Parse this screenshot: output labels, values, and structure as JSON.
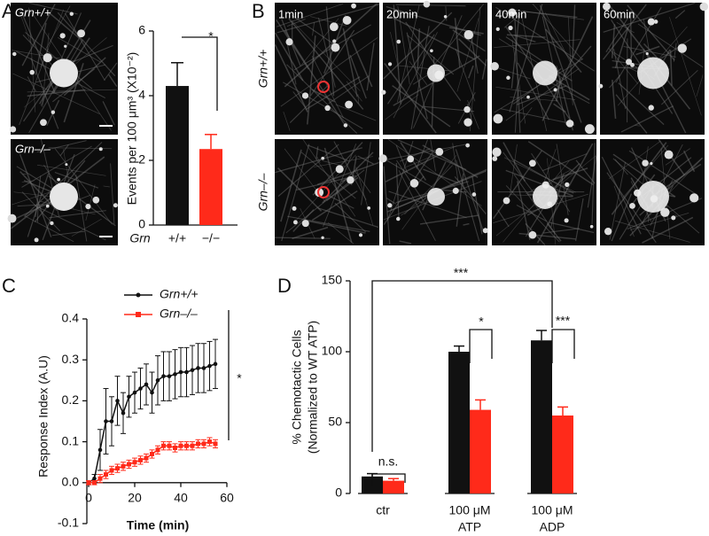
{
  "panels": [
    "A",
    "B",
    "C",
    "D"
  ],
  "panel_a_images": {
    "labels": [
      "Grn+/+",
      "Grn–/–"
    ]
  },
  "panel_b_images": {
    "time_labels": [
      "1min",
      "20min",
      "40min",
      "60min"
    ],
    "row_labels": [
      "Grn+/+",
      "Grn–/–"
    ]
  },
  "chart_data": [
    {
      "type": "bar",
      "y_label": "Events per 100 μm³ (X10⁻²)",
      "x_label": "Grn",
      "categories": [
        "+/+",
        "−/−"
      ],
      "values": [
        4.3,
        2.35
      ],
      "errors": [
        0.72,
        0.45
      ],
      "colors": [
        "#111111",
        "#ff2a1a"
      ],
      "ylim": [
        0,
        6
      ],
      "yticks": [
        0,
        2,
        4,
        6
      ],
      "annotations": [
        "*"
      ]
    },
    {
      "type": "line",
      "x_label": "Time (min)",
      "y_label": "Response Index (A.U)",
      "x": [
        0,
        2.5,
        5,
        7.5,
        10,
        12.5,
        15,
        17.5,
        20,
        22.5,
        25,
        27.5,
        30,
        32.5,
        35,
        37.5,
        40,
        42.5,
        45,
        47.5,
        50,
        52.5,
        55
      ],
      "series": [
        {
          "name": "Grn+/+",
          "color": "#111111",
          "values": [
            0,
            0.01,
            0.08,
            0.15,
            0.15,
            0.2,
            0.17,
            0.21,
            0.22,
            0.23,
            0.24,
            0.22,
            0.25,
            0.26,
            0.26,
            0.265,
            0.27,
            0.27,
            0.275,
            0.28,
            0.28,
            0.285,
            0.29
          ],
          "errors": [
            0.005,
            0.01,
            0.05,
            0.08,
            0.06,
            0.06,
            0.05,
            0.05,
            0.05,
            0.05,
            0.05,
            0.05,
            0.06,
            0.06,
            0.06,
            0.06,
            0.06,
            0.06,
            0.06,
            0.06,
            0.06,
            0.06,
            0.06
          ]
        },
        {
          "name": "Grn–/–",
          "color": "#ff2a1a",
          "values": [
            0,
            0,
            0.01,
            0.02,
            0.03,
            0.035,
            0.04,
            0.045,
            0.05,
            0.055,
            0.06,
            0.07,
            0.08,
            0.09,
            0.09,
            0.085,
            0.09,
            0.09,
            0.09,
            0.095,
            0.095,
            0.1,
            0.095
          ],
          "errors": [
            0.005,
            0.005,
            0.01,
            0.01,
            0.01,
            0.01,
            0.01,
            0.01,
            0.01,
            0.01,
            0.01,
            0.01,
            0.01,
            0.01,
            0.01,
            0.01,
            0.01,
            0.01,
            0.01,
            0.01,
            0.01,
            0.01,
            0.01
          ]
        }
      ],
      "xlim": [
        0,
        60
      ],
      "xticks": [
        0,
        20,
        40,
        60
      ],
      "ylim": [
        -0.1,
        0.4
      ],
      "yticks": [
        -0.1,
        {
          "value": 0,
          "label": "0.0"
        },
        0.1,
        0.2,
        0.3,
        0.4
      ],
      "legend": "top-left",
      "annotations": [
        "*"
      ]
    },
    {
      "type": "bar",
      "y_label": [
        "% Chemotactic Cells",
        "(Normalized to WT ATP)"
      ],
      "categories": [
        [
          "ctr"
        ],
        [
          "100 μM",
          "ATP"
        ],
        [
          "100 μM",
          "ADP"
        ]
      ],
      "series": [
        {
          "color": "#111111",
          "values": [
            12,
            100,
            108
          ],
          "errors": [
            2,
            4,
            7
          ]
        },
        {
          "color": "#ff2a1a",
          "values": [
            9,
            59,
            55
          ],
          "errors": [
            1.5,
            7,
            6
          ]
        }
      ],
      "ylim": [
        0,
        150
      ],
      "yticks": [
        0,
        50,
        100,
        150
      ],
      "annotations": [
        "n.s.",
        "*",
        "***",
        "***"
      ]
    }
  ]
}
